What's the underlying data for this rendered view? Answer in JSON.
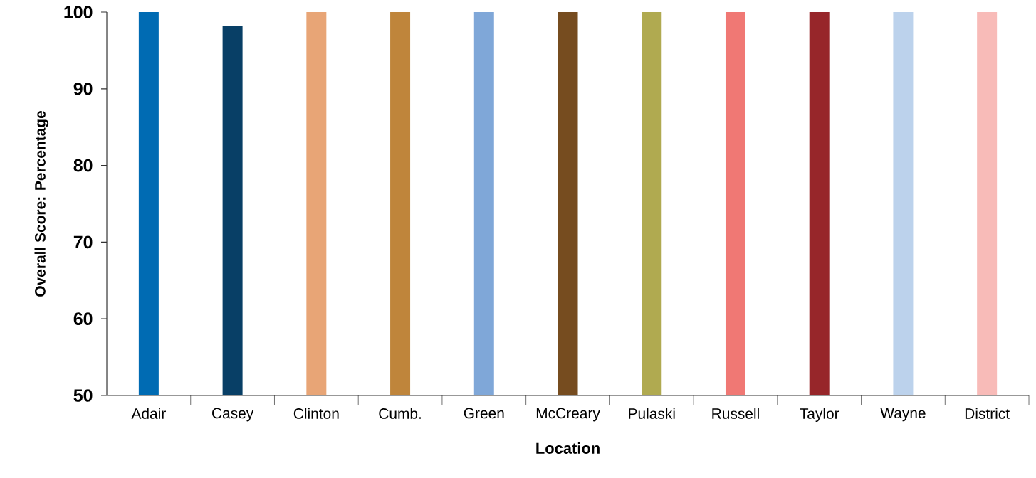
{
  "chart_data": {
    "type": "bar",
    "xlabel": "Location",
    "ylabel": "Overall Score: Percentage",
    "categories": [
      "Adair",
      "Casey",
      "Clinton",
      "Cumb.",
      "Green",
      "McCreary",
      "Pulaski",
      "Russell",
      "Taylor",
      "Wayne",
      "District"
    ],
    "values": [
      100,
      98.2,
      100,
      100,
      100,
      100,
      100,
      100,
      100,
      100,
      100
    ],
    "colors": [
      "#006bb3",
      "#083f66",
      "#e8a576",
      "#bf853b",
      "#7fa7d8",
      "#764c1f",
      "#b0aa50",
      "#f07874",
      "#97262a",
      "#bcd2ec",
      "#f8bbb8"
    ],
    "ylim": [
      50,
      100
    ],
    "yticks": [
      50,
      60,
      70,
      80,
      90,
      100
    ]
  }
}
